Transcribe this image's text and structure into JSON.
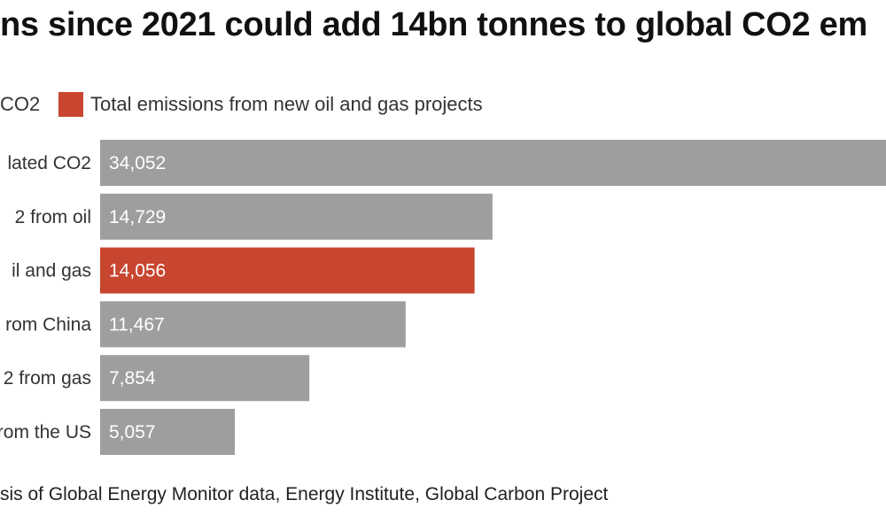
{
  "title": "ns since 2021 could add 14bn tonnes to global CO2 em",
  "legend": [
    {
      "label": "CO2",
      "color": "#9e9e9e"
    },
    {
      "label": "Total emissions from new oil and gas projects",
      "color": "#c8452f"
    }
  ],
  "source": "sis of Global Energy Monitor data, Energy Institute, Global Carbon Project",
  "chart_data": {
    "type": "bar",
    "orientation": "horizontal",
    "categories": [
      "lated CO2",
      "2 from oil",
      "il and gas",
      "rom China",
      "2 from gas",
      "rom the US"
    ],
    "values": [
      34052,
      14729,
      14056,
      11467,
      7854,
      5057
    ],
    "value_labels": [
      "34,052",
      "14,729",
      "14,056",
      "11,467",
      "7,854",
      "5,057"
    ],
    "bar_colors": [
      "#9e9e9e",
      "#9e9e9e",
      "#c8452f",
      "#9e9e9e",
      "#9e9e9e",
      "#9e9e9e"
    ],
    "xlim": [
      0,
      29500
    ],
    "grid": false
  }
}
